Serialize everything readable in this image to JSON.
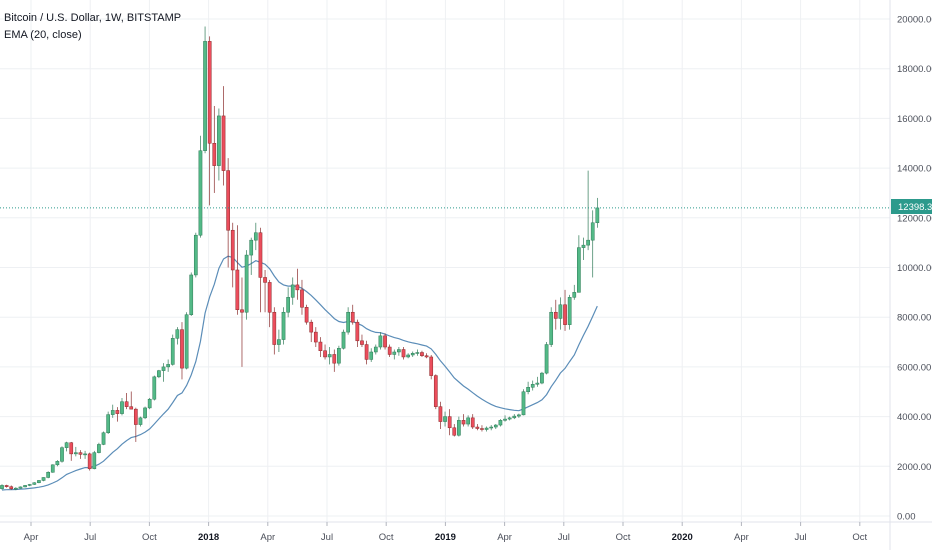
{
  "header": {
    "title": "Bitcoin / U.S. Dollar, 1W, BITSTAMP",
    "indicator": "EMA (20, close)"
  },
  "colors": {
    "up": "#53b987",
    "up_border": "#2f7a57",
    "down": "#eb4d5c",
    "down_border": "#8a2b2b",
    "ema": "#5b8db8",
    "grid": "#eef0f3",
    "price_line": "#2c9a8c",
    "axis_text": "#4a4e59"
  },
  "chart_data": {
    "type": "candlestick",
    "title": "Bitcoin / U.S. Dollar, 1W, BITSTAMP",
    "interval": "1W",
    "ylim": [
      0,
      20000
    ],
    "y_ticks": [
      "0.00",
      "2000.00",
      "4000.00",
      "6000.00",
      "8000.00",
      "10000.00",
      "12000.00",
      "14000.00",
      "16000.00",
      "18000.00",
      "20000.00"
    ],
    "x_ticks": [
      "Apr",
      "Jul",
      "Oct",
      "2018",
      "Apr",
      "Jul",
      "Oct",
      "2019",
      "Apr",
      "Jul",
      "Oct",
      "2020",
      "Apr",
      "Jul",
      "Oct"
    ],
    "x_ticks_bold": [
      false,
      false,
      false,
      true,
      false,
      false,
      false,
      true,
      false,
      false,
      false,
      true,
      false,
      false,
      false
    ],
    "last_price": "12398.33",
    "last_price_value": 12398.33,
    "ema_period": 20,
    "ema_label": "EMA (20, close)",
    "ohlc_weekly": [
      [
        1100,
        1280,
        1060,
        1230
      ],
      [
        1230,
        1260,
        1140,
        1180
      ],
      [
        1180,
        1230,
        1050,
        1100
      ],
      [
        1100,
        1160,
        1040,
        1120
      ],
      [
        1120,
        1190,
        1100,
        1170
      ],
      [
        1170,
        1250,
        1150,
        1230
      ],
      [
        1230,
        1290,
        1200,
        1270
      ],
      [
        1270,
        1360,
        1250,
        1340
      ],
      [
        1340,
        1450,
        1320,
        1430
      ],
      [
        1430,
        1560,
        1400,
        1550
      ],
      [
        1550,
        1800,
        1520,
        1760
      ],
      [
        1760,
        2080,
        1740,
        2060
      ],
      [
        2060,
        2250,
        2000,
        2200
      ],
      [
        2200,
        2800,
        2150,
        2750
      ],
      [
        2750,
        2990,
        2600,
        2950
      ],
      [
        2950,
        2980,
        2220,
        2500
      ],
      [
        2500,
        2780,
        2400,
        2550
      ],
      [
        2550,
        2650,
        2300,
        2480
      ],
      [
        2480,
        2620,
        2300,
        2500
      ],
      [
        2500,
        2550,
        1830,
        1900
      ],
      [
        1900,
        2620,
        1880,
        2550
      ],
      [
        2550,
        2950,
        2520,
        2880
      ],
      [
        2880,
        3400,
        2850,
        3350
      ],
      [
        3350,
        4200,
        3300,
        4080
      ],
      [
        4080,
        4480,
        3950,
        4250
      ],
      [
        4250,
        4380,
        3800,
        4120
      ],
      [
        4120,
        4750,
        4050,
        4600
      ],
      [
        4600,
        4950,
        4300,
        4400
      ],
      [
        4400,
        5010,
        4300,
        4300
      ],
      [
        4300,
        4360,
        2980,
        3680
      ],
      [
        3680,
        4000,
        3600,
        3950
      ],
      [
        3950,
        4400,
        3900,
        4350
      ],
      [
        4350,
        4750,
        4300,
        4700
      ],
      [
        4700,
        5650,
        4650,
        5600
      ],
      [
        5600,
        5880,
        5550,
        5850
      ],
      [
        5850,
        6150,
        5400,
        6000
      ],
      [
        6000,
        6300,
        5800,
        6100
      ],
      [
        6100,
        7300,
        6050,
        7150
      ],
      [
        7150,
        7600,
        6900,
        7500
      ],
      [
        7500,
        7800,
        5500,
        5950
      ],
      [
        5950,
        8200,
        5900,
        8100
      ],
      [
        8100,
        9800,
        8050,
        9700
      ],
      [
        9700,
        11400,
        9600,
        11300
      ],
      [
        11300,
        15300,
        11200,
        14700
      ],
      [
        14700,
        19700,
        14600,
        19100
      ],
      [
        19100,
        19300,
        12500,
        15000
      ],
      [
        15000,
        16500,
        13000,
        14100
      ],
      [
        14100,
        16400,
        13500,
        16100
      ],
      [
        16100,
        17300,
        13300,
        13900
      ],
      [
        13900,
        14400,
        10000,
        11500
      ],
      [
        11500,
        11800,
        9200,
        9900
      ],
      [
        9900,
        11700,
        8100,
        8300
      ],
      [
        8300,
        9600,
        6000,
        8200
      ],
      [
        8200,
        10700,
        7900,
        10500
      ],
      [
        10500,
        11200,
        9700,
        11100
      ],
      [
        11100,
        11800,
        10700,
        11400
      ],
      [
        11400,
        11600,
        8200,
        9600
      ],
      [
        9600,
        9900,
        8200,
        9400
      ],
      [
        9400,
        9500,
        7600,
        8200
      ],
      [
        8200,
        8400,
        6500,
        6900
      ],
      [
        6900,
        7500,
        6600,
        7100
      ],
      [
        7100,
        8400,
        6900,
        8200
      ],
      [
        8200,
        9200,
        8000,
        8800
      ],
      [
        8800,
        9600,
        8500,
        9300
      ],
      [
        9300,
        9950,
        8700,
        9100
      ],
      [
        9100,
        9500,
        8100,
        8400
      ],
      [
        8400,
        8500,
        7700,
        7800
      ],
      [
        7800,
        7900,
        7000,
        7400
      ],
      [
        7400,
        7600,
        6800,
        7000
      ],
      [
        7000,
        7200,
        6400,
        6650
      ],
      [
        6650,
        6900,
        6300,
        6400
      ],
      [
        6400,
        6800,
        6100,
        6500
      ],
      [
        6500,
        6700,
        5800,
        6150
      ],
      [
        6150,
        6850,
        6050,
        6750
      ],
      [
        6750,
        7500,
        6700,
        7400
      ],
      [
        7400,
        8400,
        7300,
        8200
      ],
      [
        8200,
        8500,
        7700,
        7800
      ],
      [
        7800,
        7900,
        6800,
        7050
      ],
      [
        7050,
        7300,
        6800,
        6900
      ],
      [
        6900,
        7050,
        6100,
        6300
      ],
      [
        6300,
        6750,
        6200,
        6600
      ],
      [
        6600,
        6900,
        6500,
        6800
      ],
      [
        6800,
        7400,
        6700,
        7250
      ],
      [
        7250,
        7350,
        6700,
        6800
      ],
      [
        6800,
        6900,
        6400,
        6500
      ],
      [
        6500,
        6700,
        6300,
        6600
      ],
      [
        6600,
        6800,
        6450,
        6700
      ],
      [
        6700,
        6800,
        6300,
        6400
      ],
      [
        6400,
        6550,
        6350,
        6480
      ],
      [
        6480,
        6620,
        6400,
        6550
      ],
      [
        6550,
        6700,
        6450,
        6580
      ],
      [
        6580,
        6650,
        6400,
        6450
      ],
      [
        6450,
        6550,
        6350,
        6400
      ],
      [
        6400,
        6480,
        5500,
        5650
      ],
      [
        5650,
        5700,
        4300,
        4400
      ],
      [
        4400,
        4600,
        3500,
        3800
      ],
      [
        3800,
        4200,
        3600,
        4000
      ],
      [
        4000,
        4300,
        3250,
        3550
      ],
      [
        3550,
        3700,
        3200,
        3250
      ],
      [
        3250,
        4000,
        3200,
        3850
      ],
      [
        3850,
        4100,
        3600,
        3700
      ],
      [
        3700,
        4050,
        3600,
        3950
      ],
      [
        3950,
        4100,
        3500,
        3580
      ],
      [
        3580,
        3700,
        3450,
        3520
      ],
      [
        3520,
        3650,
        3400,
        3480
      ],
      [
        3480,
        3600,
        3400,
        3540
      ],
      [
        3540,
        3660,
        3450,
        3580
      ],
      [
        3580,
        3700,
        3500,
        3660
      ],
      [
        3660,
        3900,
        3600,
        3850
      ],
      [
        3850,
        4050,
        3800,
        3900
      ],
      [
        3900,
        4000,
        3850,
        3950
      ],
      [
        3950,
        4100,
        3900,
        4020
      ],
      [
        4020,
        4120,
        3950,
        4070
      ],
      [
        4070,
        5100,
        4050,
        5000
      ],
      [
        5000,
        5400,
        4900,
        5180
      ],
      [
        5180,
        5450,
        5050,
        5300
      ],
      [
        5300,
        5600,
        5200,
        5350
      ],
      [
        5350,
        5800,
        5300,
        5750
      ],
      [
        5750,
        7000,
        5700,
        6900
      ],
      [
        6900,
        8400,
        6800,
        8200
      ],
      [
        8200,
        8700,
        7500,
        7950
      ],
      [
        7950,
        8800,
        7500,
        8500
      ],
      [
        8500,
        9100,
        7450,
        7700
      ],
      [
        7700,
        8900,
        7500,
        8800
      ],
      [
        8800,
        9300,
        8700,
        9000
      ],
      [
        9000,
        11300,
        9000,
        10800
      ],
      [
        10800,
        11200,
        10300,
        10900
      ],
      [
        10900,
        13900,
        10700,
        11100
      ],
      [
        11100,
        12300,
        9600,
        11800
      ],
      [
        11800,
        12800,
        11600,
        12398.33
      ]
    ]
  }
}
